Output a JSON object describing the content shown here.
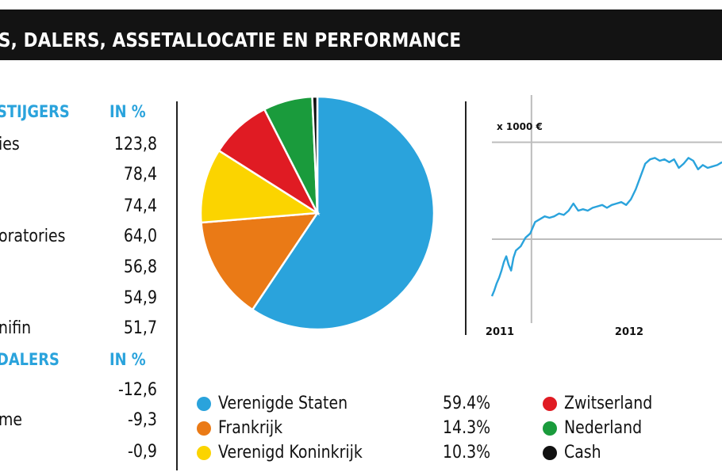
{
  "header": {
    "title": "S, DALERS, ASSETALLOCATIE EN PERFORMANCE"
  },
  "stijgers": {
    "heading": "STIJGERS",
    "unit": "IN %",
    "rows": [
      {
        "name": "ies",
        "value": "123,8"
      },
      {
        "name": "",
        "value": "78,4"
      },
      {
        "name": "",
        "value": "74,4"
      },
      {
        "name": "oratories",
        "value": "64,0"
      },
      {
        "name": "",
        "value": "56,8"
      },
      {
        "name": "",
        "value": "54,9"
      },
      {
        "name": "nifin",
        "value": "51,7"
      }
    ]
  },
  "dalers": {
    "heading": "DALERS",
    "unit": "IN %",
    "rows": [
      {
        "name": "",
        "value": "-12,6"
      },
      {
        "name": "me",
        "value": "-9,3"
      },
      {
        "name": "",
        "value": "-0,9"
      }
    ]
  },
  "colors": {
    "accent": "#2aa3dc",
    "header_bg": "#131313",
    "verenigde_staten": "#2aa3dc",
    "frankrijk": "#ea7a16",
    "verenigd_koninkrijk": "#fbd400",
    "zwitserland": "#e01b23",
    "nederland": "#1a9b3c",
    "cash": "#111111"
  },
  "chart_data": [
    {
      "type": "pie",
      "title": "",
      "slices": [
        {
          "name": "Verenigde Staten",
          "label": "59.4%",
          "value": 59.4,
          "color": "#2aa3dc"
        },
        {
          "name": "Frankrijk",
          "label": "14.3%",
          "value": 14.3,
          "color": "#ea7a16"
        },
        {
          "name": "Verenigd Koninkrijk",
          "label": "10.3%",
          "value": 10.3,
          "color": "#fbd400"
        },
        {
          "name": "Zwitserland",
          "value": 8.5,
          "color": "#e01b23"
        },
        {
          "name": "Nederland",
          "value": 6.8,
          "color": "#1a9b3c"
        },
        {
          "name": "Cash",
          "value": 0.7,
          "color": "#111111"
        }
      ]
    },
    {
      "type": "line",
      "title": "",
      "ylabel": "x 1000 €",
      "x_tick_labels": [
        "2011",
        "2012"
      ],
      "grid": true,
      "color": "#2aa3dc",
      "series": [
        {
          "x": [
            2011.0,
            2011.02,
            2011.04,
            2011.06,
            2011.08,
            2011.1,
            2011.12,
            2011.14,
            2011.16,
            2011.18,
            2011.2,
            2011.24,
            2011.28,
            2011.32,
            2011.36,
            2011.4,
            2011.44,
            2011.48,
            2011.52,
            2011.56,
            2011.6,
            2011.64,
            2011.68,
            2011.72,
            2011.76,
            2011.8,
            2011.84,
            2011.88,
            2011.92,
            2011.96,
            2012.0,
            2012.04,
            2012.08,
            2012.12,
            2012.16,
            2012.2,
            2012.24,
            2012.28,
            2012.32,
            2012.36,
            2012.4,
            2012.44,
            2012.48,
            2012.52,
            2012.56,
            2012.6,
            2012.64,
            2012.68,
            2012.72,
            2012.76,
            2012.8,
            2012.84,
            2012.88,
            2012.92
          ],
          "y": [
            0.2,
            0.24,
            0.29,
            0.33,
            0.38,
            0.44,
            0.48,
            0.42,
            0.38,
            0.47,
            0.52,
            0.55,
            0.61,
            0.64,
            0.72,
            0.74,
            0.76,
            0.75,
            0.76,
            0.78,
            0.77,
            0.8,
            0.85,
            0.8,
            0.81,
            0.8,
            0.82,
            0.83,
            0.84,
            0.82,
            0.84,
            0.85,
            0.86,
            0.84,
            0.88,
            0.95,
            1.04,
            1.13,
            1.16,
            1.17,
            1.15,
            1.16,
            1.14,
            1.16,
            1.1,
            1.13,
            1.17,
            1.15,
            1.09,
            1.12,
            1.1,
            1.11,
            1.12,
            1.14
          ]
        }
      ]
    }
  ]
}
